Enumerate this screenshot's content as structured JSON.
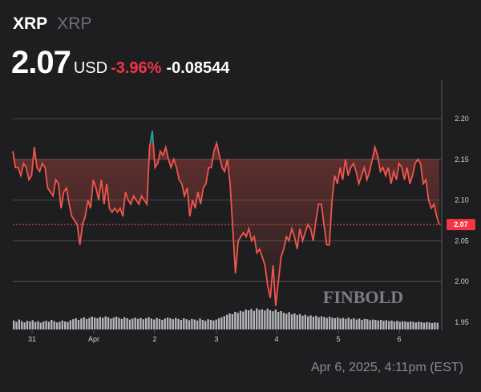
{
  "header": {
    "symbol": "XRP",
    "name": "XRP",
    "price": "2.07",
    "currency": "USD",
    "change_pct": "-3.96%",
    "change_abs": "-0.08544"
  },
  "watermark": "FINBOLD",
  "footer": {
    "timestamp": "Apr 6, 2025, 4:11pm (EST)"
  },
  "colors": {
    "background": "#1e1e20",
    "line_down": "#f0564c",
    "line_up": "#26a69a",
    "pct_text": "#f23645",
    "volume": "#c8c8cc",
    "grid": "#5a5a5e"
  },
  "chart_data": {
    "type": "line",
    "x_tick_labels": [
      "31",
      "Apr",
      "2",
      "3",
      "4",
      "5",
      "6"
    ],
    "y_tick_labels": [
      "2.20",
      "2.15",
      "2.10",
      "2.05",
      "2.00",
      "1.95"
    ],
    "ylim": [
      1.94,
      2.23
    ],
    "grid": true,
    "last_value_label": "2.07",
    "reference_price": 2.15,
    "series": [
      {
        "values": [
          2.16,
          2.14,
          2.14,
          2.13,
          2.145,
          2.14,
          2.125,
          2.13,
          2.165,
          2.14,
          2.135,
          2.145,
          2.14,
          2.115,
          2.11,
          2.105,
          2.125,
          2.12,
          2.09,
          2.11,
          2.115,
          2.095,
          2.08,
          2.075,
          2.07,
          2.045,
          2.07,
          2.08,
          2.1,
          2.09,
          2.125,
          2.115,
          2.1,
          2.125,
          2.095,
          2.12,
          2.09,
          2.085,
          2.09,
          2.085,
          2.09,
          2.08,
          2.11,
          2.1,
          2.095,
          2.105,
          2.1,
          2.095,
          2.105,
          2.1,
          2.095,
          2.165,
          2.185,
          2.14,
          2.145,
          2.16,
          2.155,
          2.165,
          2.15,
          2.14,
          2.15,
          2.14,
          2.125,
          2.12,
          2.105,
          2.115,
          2.08,
          2.1,
          2.09,
          2.11,
          2.095,
          2.115,
          2.12,
          2.14,
          2.14,
          2.16,
          2.17,
          2.155,
          2.14,
          2.135,
          2.15,
          2.12,
          2.065,
          2.01,
          2.05,
          2.055,
          2.06,
          2.055,
          2.065,
          2.05,
          2.055,
          2.035,
          2.04,
          2.03,
          2.02,
          1.995,
          1.98,
          2.02,
          1.97,
          2.0,
          2.03,
          2.04,
          2.055,
          2.05,
          2.065,
          2.055,
          2.04,
          2.065,
          2.05,
          2.06,
          2.07,
          2.065,
          2.05,
          2.075,
          2.095,
          2.095,
          2.07,
          2.045,
          2.045,
          2.1,
          2.13,
          2.12,
          2.14,
          2.125,
          2.15,
          2.13,
          2.14,
          2.145,
          2.135,
          2.12,
          2.13,
          2.14,
          2.125,
          2.135,
          2.15,
          2.165,
          2.155,
          2.135,
          2.14,
          2.13,
          2.14,
          2.12,
          2.135,
          2.125,
          2.145,
          2.14,
          2.125,
          2.14,
          2.12,
          2.13,
          2.145,
          2.15,
          2.145,
          2.12,
          2.125,
          2.1,
          2.09,
          2.095,
          2.08,
          2.07
        ]
      }
    ],
    "volume": [
      0.28,
      0.24,
      0.31,
      0.26,
      0.22,
      0.27,
      0.25,
      0.29,
      0.23,
      0.26,
      0.21,
      0.25,
      0.27,
      0.24,
      0.3,
      0.26,
      0.22,
      0.24,
      0.28,
      0.25,
      0.23,
      0.29,
      0.32,
      0.35,
      0.3,
      0.34,
      0.38,
      0.33,
      0.36,
      0.4,
      0.37,
      0.35,
      0.39,
      0.36,
      0.41,
      0.38,
      0.34,
      0.37,
      0.4,
      0.36,
      0.33,
      0.38,
      0.35,
      0.31,
      0.34,
      0.37,
      0.33,
      0.36,
      0.32,
      0.35,
      0.38,
      0.34,
      0.31,
      0.36,
      0.33,
      0.3,
      0.34,
      0.37,
      0.35,
      0.32,
      0.36,
      0.33,
      0.3,
      0.35,
      0.32,
      0.29,
      0.33,
      0.31,
      0.28,
      0.34,
      0.3,
      0.27,
      0.32,
      0.3,
      0.28,
      0.31,
      0.35,
      0.38,
      0.42,
      0.46,
      0.5,
      0.48,
      0.55,
      0.52,
      0.58,
      0.56,
      0.62,
      0.6,
      0.64,
      0.58,
      0.66,
      0.61,
      0.63,
      0.59,
      0.65,
      0.6,
      0.57,
      0.62,
      0.55,
      0.58,
      0.52,
      0.49,
      0.54,
      0.47,
      0.5,
      0.45,
      0.48,
      0.43,
      0.46,
      0.41,
      0.44,
      0.4,
      0.43,
      0.38,
      0.41,
      0.39,
      0.36,
      0.4,
      0.37,
      0.35,
      0.38,
      0.34,
      0.36,
      0.33,
      0.37,
      0.32,
      0.35,
      0.31,
      0.34,
      0.3,
      0.33,
      0.32,
      0.29,
      0.31,
      0.3,
      0.28,
      0.3,
      0.27,
      0.29,
      0.26,
      0.28,
      0.25,
      0.27,
      0.24,
      0.26,
      0.25,
      0.23,
      0.25,
      0.24,
      0.22,
      0.24,
      0.23,
      0.21,
      0.23,
      0.22,
      0.2,
      0.22,
      0.21
    ]
  }
}
